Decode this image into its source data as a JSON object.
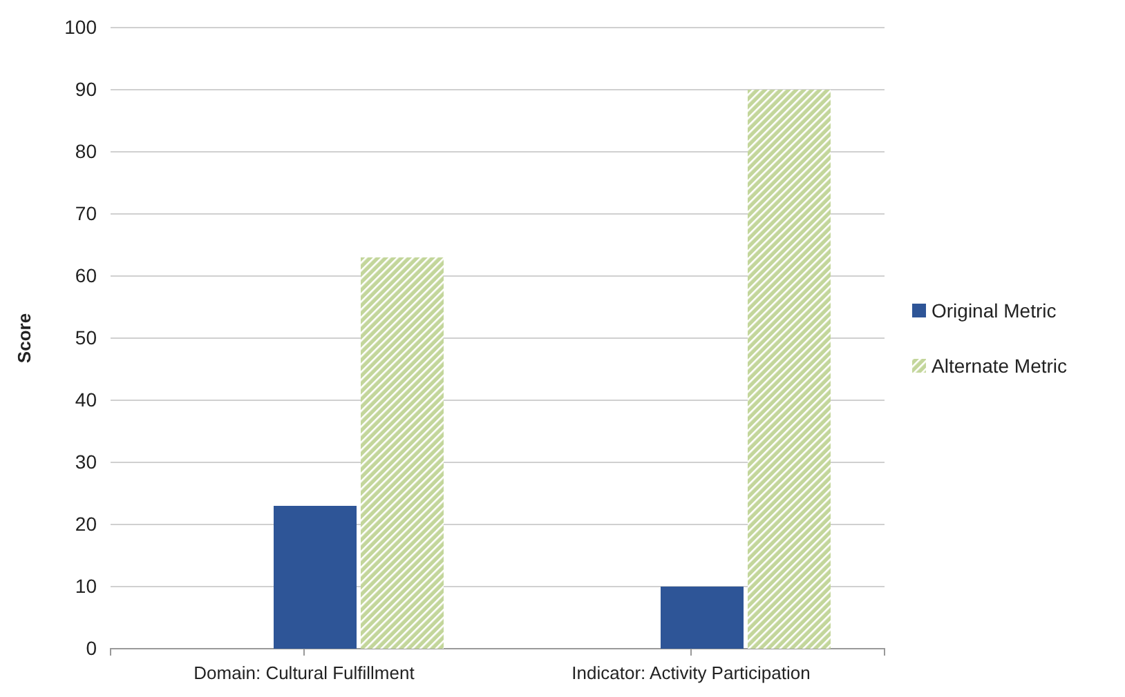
{
  "chart_data": {
    "type": "bar",
    "ylabel": "Score",
    "categories": [
      "Domain: Cultural Fulfillment",
      "Indicator: Activity Participation"
    ],
    "series": [
      {
        "name": "Original Metric",
        "color": "#2e5597",
        "values": [
          23,
          10
        ]
      },
      {
        "name": "Alternate Metric",
        "color": "#c3d69b",
        "values": [
          63,
          90
        ]
      }
    ],
    "ylim": [
      0,
      100
    ],
    "yticks": [
      0,
      10,
      20,
      30,
      40,
      50,
      60,
      70,
      80,
      90,
      100
    ],
    "grid": "y",
    "legend": "right"
  }
}
